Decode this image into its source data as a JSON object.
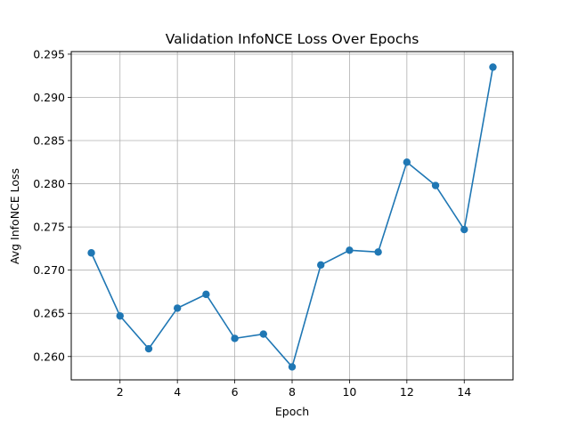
{
  "chart_data": {
    "type": "line",
    "title": "Validation InfoNCE Loss Over Epochs",
    "xlabel": "Epoch",
    "ylabel": "Avg InfoNCE Loss",
    "xlim": [
      0.3,
      15.7
    ],
    "ylim": [
      0.2573,
      0.2953
    ],
    "xticks": [
      2,
      4,
      6,
      8,
      10,
      12,
      14
    ],
    "yticks": [
      0.26,
      0.265,
      0.27,
      0.275,
      0.28,
      0.285,
      0.29,
      0.295
    ],
    "ytick_labels": [
      "0.260",
      "0.265",
      "0.270",
      "0.275",
      "0.280",
      "0.285",
      "0.290",
      "0.295"
    ],
    "grid": true,
    "x": [
      1,
      2,
      3,
      4,
      5,
      6,
      7,
      8,
      9,
      10,
      11,
      12,
      13,
      14,
      15
    ],
    "series": [
      {
        "values": [
          0.272,
          0.2647,
          0.2609,
          0.2656,
          0.2672,
          0.2621,
          0.2626,
          0.2588,
          0.2706,
          0.2723,
          0.2721,
          0.2825,
          0.2798,
          0.2747,
          0.2935
        ],
        "color": "#1f77b4",
        "marker": "circle"
      }
    ]
  }
}
